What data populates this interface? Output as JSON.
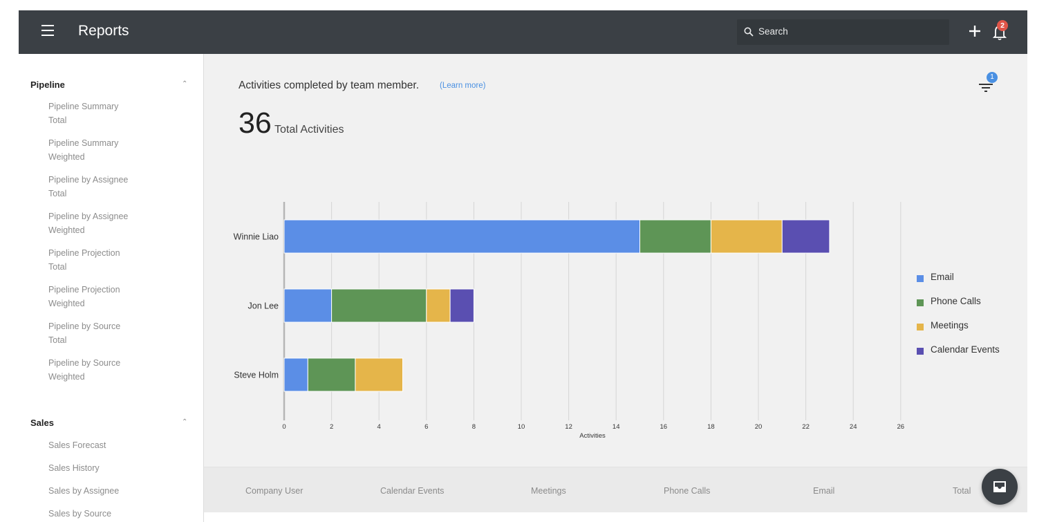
{
  "app": {
    "title": "Reports"
  },
  "topbar": {
    "search_placeholder": "Search",
    "notification_count": "2"
  },
  "sidebar": {
    "groups": [
      {
        "title": "Pipeline",
        "items": [
          [
            "Pipeline Summary",
            "Total"
          ],
          [
            "Pipeline Summary",
            "Weighted"
          ],
          [
            "Pipeline by Assignee",
            "Total"
          ],
          [
            "Pipeline by Assignee",
            "Weighted"
          ],
          [
            "Pipeline Projection",
            "Total"
          ],
          [
            "Pipeline Projection",
            "Weighted"
          ],
          [
            "Pipeline by Source",
            "Total"
          ],
          [
            "Pipeline by Source",
            "Weighted"
          ]
        ]
      },
      {
        "title": "Sales",
        "items": [
          "Sales Forecast",
          "Sales History",
          "Sales by Assignee",
          "Sales by Source"
        ]
      }
    ]
  },
  "report": {
    "headline": "Activities completed by team member.",
    "learn_more": "(Learn more)",
    "filter_count": "1",
    "total_value": "36",
    "total_label": "Total Activities"
  },
  "chart_data": {
    "type": "bar",
    "orientation": "horizontal",
    "stacked": true,
    "categories": [
      "Winnie Liao",
      "Jon Lee",
      "Steve Holm"
    ],
    "series": [
      {
        "name": "Email",
        "color": "#5b8ee6",
        "values": [
          15,
          2,
          1
        ]
      },
      {
        "name": "Phone Calls",
        "color": "#5e9556",
        "values": [
          3,
          4,
          2
        ]
      },
      {
        "name": "Meetings",
        "color": "#e5b54a",
        "values": [
          3,
          1,
          2
        ]
      },
      {
        "name": "Calendar Events",
        "color": "#5a4fb1",
        "values": [
          2,
          1,
          0
        ]
      }
    ],
    "xlabel": "Activities",
    "xticks": [
      0,
      2,
      4,
      6,
      8,
      10,
      12,
      14,
      16,
      18,
      20,
      22,
      24,
      26
    ],
    "xlim": [
      0,
      26
    ],
    "grid": true,
    "legend": "right"
  },
  "table": {
    "headers": [
      "Company User",
      "Calendar Events",
      "Meetings",
      "Phone Calls",
      "Email",
      "Total"
    ]
  }
}
